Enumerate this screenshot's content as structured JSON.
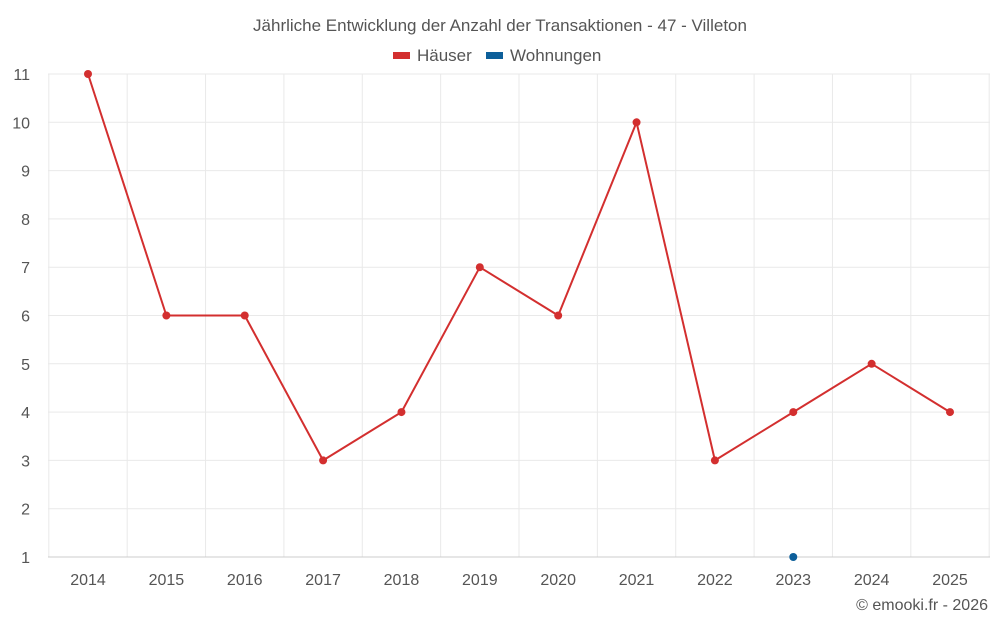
{
  "chart_data": {
    "type": "line",
    "title": "Jährliche Entwicklung der Anzahl der Transaktionen - 47 - Villeton",
    "categories": [
      "2014",
      "2015",
      "2016",
      "2017",
      "2018",
      "2019",
      "2020",
      "2021",
      "2022",
      "2023",
      "2024",
      "2025"
    ],
    "series": [
      {
        "name": "Häuser",
        "color": "#d32f2f",
        "values": [
          11,
          6,
          6,
          3,
          4,
          7,
          6,
          10,
          3,
          4,
          5,
          4
        ]
      },
      {
        "name": "Wohnungen",
        "color": "#0d5f9a",
        "values": [
          null,
          null,
          null,
          null,
          null,
          null,
          null,
          null,
          null,
          1,
          null,
          null
        ]
      }
    ],
    "yticks": [
      1,
      2,
      3,
      4,
      5,
      6,
      7,
      8,
      9,
      10,
      11
    ],
    "ylim": [
      1,
      11
    ],
    "grid": true,
    "legend_position": "top-center"
  },
  "credit": "© emooki.fr - 2026"
}
